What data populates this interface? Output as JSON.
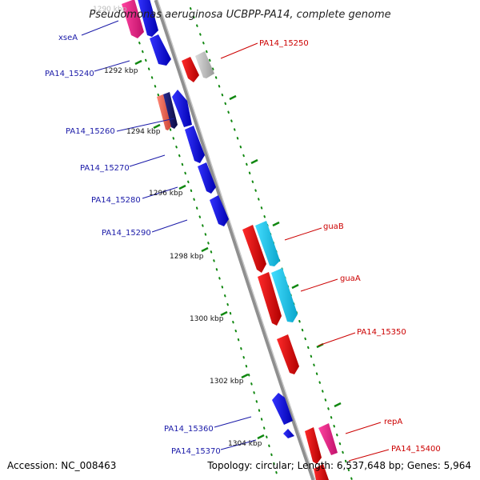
{
  "title": "Pseudomonas aeruginosa UCBPP-PA14, complete genome",
  "accession": "Accession: NC_008463",
  "topology": "Topology: circular; Length: 6,537,648 bp; Genes: 5,964",
  "colors": {
    "backbone": "#888888",
    "tick": "#118811",
    "gene_blue": "#0000ee",
    "gene_navy": "#10106a",
    "gene_red": "#ee0000",
    "gene_cyan": "#11ccee",
    "gene_magenta": "#ee2288",
    "gene_salmon": "#ee6655",
    "gene_gray": "#bbbbbb",
    "label_left": "#1a1aa8",
    "label_right": "#cc0000"
  },
  "kbp_markers": [
    "1290 kbp",
    "1292 kbp",
    "1294 kbp",
    "1296 kbp",
    "1298 kbp",
    "1300 kbp",
    "1302 kbp",
    "1304 kbp"
  ],
  "genes_left": [
    "xseA",
    "PA14_15240",
    "PA14_15260",
    "PA14_15270",
    "PA14_15280",
    "PA14_15290",
    "PA14_15360",
    "PA14_15370"
  ],
  "genes_right": [
    "PA14_15250",
    "guaB",
    "guaA",
    "PA14_15350",
    "repA",
    "PA14_15400"
  ]
}
